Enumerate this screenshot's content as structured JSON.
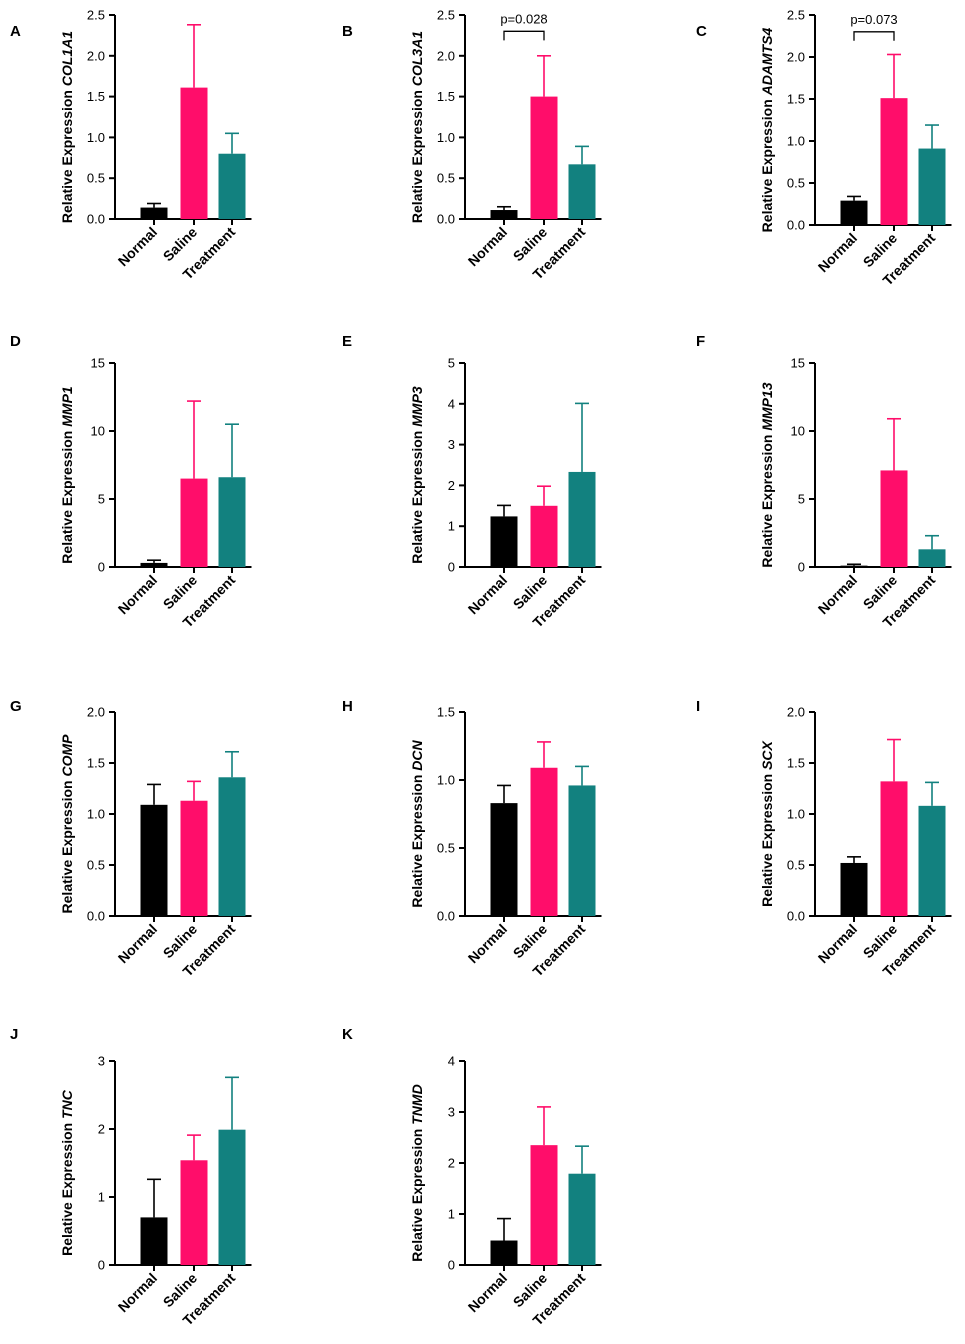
{
  "figure": {
    "category_order": [
      "Normal",
      "Saline",
      "Treatment"
    ],
    "colors": {
      "Normal": "#000000",
      "Saline": "#ff0d6a",
      "Treatment": "#12817f"
    }
  },
  "chart_data": [
    {
      "panel": "A",
      "type": "bar",
      "ylabel_prefix": "Relative Expression ",
      "gene": "COL1A1",
      "categories": [
        "Normal",
        "Saline",
        "Treatment"
      ],
      "values": [
        0.14,
        1.61,
        0.8
      ],
      "errors": [
        0.05,
        0.77,
        0.25
      ],
      "ylim": [
        0,
        2.5
      ],
      "yticks": [
        0,
        0.5,
        1.0,
        1.5,
        2.0,
        2.5
      ],
      "tick_labels": [
        "0.0",
        "0.5",
        "1.0",
        "1.5",
        "2.0",
        "2.5"
      ]
    },
    {
      "panel": "B",
      "type": "bar",
      "ylabel_prefix": "Relative Expression ",
      "gene": "COL3A1",
      "categories": [
        "Normal",
        "Saline",
        "Treatment"
      ],
      "values": [
        0.11,
        1.5,
        0.67
      ],
      "errors": [
        0.04,
        0.5,
        0.22
      ],
      "ylim": [
        0,
        2.5
      ],
      "yticks": [
        0,
        0.5,
        1.0,
        1.5,
        2.0,
        2.5
      ],
      "tick_labels": [
        "0.0",
        "0.5",
        "1.0",
        "1.5",
        "2.0",
        "2.5"
      ],
      "annotation": {
        "text": "p=0.028",
        "between": [
          "Normal",
          "Saline"
        ],
        "level": 2.3
      }
    },
    {
      "panel": "C",
      "type": "bar",
      "ylabel_prefix": "Relative Expression ",
      "gene": "ADAMTS4",
      "categories": [
        "Normal",
        "Saline",
        "Treatment"
      ],
      "values": [
        0.29,
        1.51,
        0.91
      ],
      "errors": [
        0.05,
        0.52,
        0.28
      ],
      "ylim": [
        0,
        2.5
      ],
      "yticks": [
        0,
        0.5,
        1.0,
        1.5,
        2.0,
        2.5
      ],
      "tick_labels": [
        "0.0",
        "0.5",
        "1.0",
        "1.5",
        "2.0",
        "2.5"
      ],
      "annotation": {
        "text": "p=0.073",
        "between": [
          "Normal",
          "Saline"
        ],
        "level": 2.3
      }
    },
    {
      "panel": "D",
      "type": "bar",
      "ylabel_prefix": "Relative Expression ",
      "gene": "MMP1",
      "categories": [
        "Normal",
        "Saline",
        "Treatment"
      ],
      "values": [
        0.3,
        6.5,
        6.6
      ],
      "errors": [
        0.2,
        5.7,
        3.9
      ],
      "ylim": [
        0,
        15
      ],
      "yticks": [
        0,
        5,
        10,
        15
      ],
      "tick_labels": [
        "0",
        "5",
        "10",
        "15"
      ]
    },
    {
      "panel": "E",
      "type": "bar",
      "ylabel_prefix": "Relative Expression ",
      "gene": "MMP3",
      "categories": [
        "Normal",
        "Saline",
        "Treatment"
      ],
      "values": [
        1.24,
        1.5,
        2.33
      ],
      "errors": [
        0.27,
        0.48,
        1.68
      ],
      "ylim": [
        0,
        5
      ],
      "yticks": [
        0,
        1,
        2,
        3,
        4,
        5
      ],
      "tick_labels": [
        "0",
        "1",
        "2",
        "3",
        "4",
        "5"
      ]
    },
    {
      "panel": "F",
      "type": "bar",
      "ylabel_prefix": "Relative Expression ",
      "gene": "MMP13",
      "categories": [
        "Normal",
        "Saline",
        "Treatment"
      ],
      "values": [
        0.1,
        7.1,
        1.3
      ],
      "errors": [
        0.1,
        3.8,
        1.0
      ],
      "ylim": [
        0,
        15
      ],
      "yticks": [
        0,
        5,
        10,
        15
      ],
      "tick_labels": [
        "0",
        "5",
        "10",
        "15"
      ]
    },
    {
      "panel": "G",
      "type": "bar",
      "ylabel_prefix": "Relative Expression ",
      "gene": "COMP",
      "categories": [
        "Normal",
        "Saline",
        "Treatment"
      ],
      "values": [
        1.09,
        1.13,
        1.36
      ],
      "errors": [
        0.2,
        0.19,
        0.25
      ],
      "ylim": [
        0,
        2.0
      ],
      "yticks": [
        0,
        0.5,
        1.0,
        1.5,
        2.0
      ],
      "tick_labels": [
        "0.0",
        "0.5",
        "1.0",
        "1.5",
        "2.0"
      ]
    },
    {
      "panel": "H",
      "type": "bar",
      "ylabel_prefix": "Relative Expression ",
      "gene": "DCN",
      "categories": [
        "Normal",
        "Saline",
        "Treatment"
      ],
      "values": [
        0.83,
        1.09,
        0.96
      ],
      "errors": [
        0.13,
        0.19,
        0.14
      ],
      "ylim": [
        0,
        1.5
      ],
      "yticks": [
        0,
        0.5,
        1.0,
        1.5
      ],
      "tick_labels": [
        "0.0",
        "0.5",
        "1.0",
        "1.5"
      ]
    },
    {
      "panel": "I",
      "type": "bar",
      "ylabel_prefix": "Relative Expression ",
      "gene": "SCX",
      "categories": [
        "Normal",
        "Saline",
        "Treatment"
      ],
      "values": [
        0.52,
        1.32,
        1.08
      ],
      "errors": [
        0.06,
        0.41,
        0.23
      ],
      "ylim": [
        0,
        2.0
      ],
      "yticks": [
        0,
        0.5,
        1.0,
        1.5,
        2.0
      ],
      "tick_labels": [
        "0.0",
        "0.5",
        "1.0",
        "1.5",
        "2.0"
      ]
    },
    {
      "panel": "J",
      "type": "bar",
      "ylabel_prefix": "Relative Expression ",
      "gene": "TNC",
      "categories": [
        "Normal",
        "Saline",
        "Treatment"
      ],
      "values": [
        0.7,
        1.54,
        1.99
      ],
      "errors": [
        0.56,
        0.37,
        0.77
      ],
      "ylim": [
        0,
        3
      ],
      "yticks": [
        0,
        1,
        2,
        3
      ],
      "tick_labels": [
        "0",
        "1",
        "2",
        "3"
      ]
    },
    {
      "panel": "K",
      "type": "bar",
      "ylabel_prefix": "Relative Expression ",
      "gene": "TNMD",
      "categories": [
        "Normal",
        "Saline",
        "Treatment"
      ],
      "values": [
        0.48,
        2.35,
        1.79
      ],
      "errors": [
        0.43,
        0.75,
        0.54
      ],
      "ylim": [
        0,
        4
      ],
      "yticks": [
        0,
        1,
        2,
        3,
        4
      ],
      "tick_labels": [
        "0",
        "1",
        "2",
        "3",
        "4"
      ]
    }
  ]
}
